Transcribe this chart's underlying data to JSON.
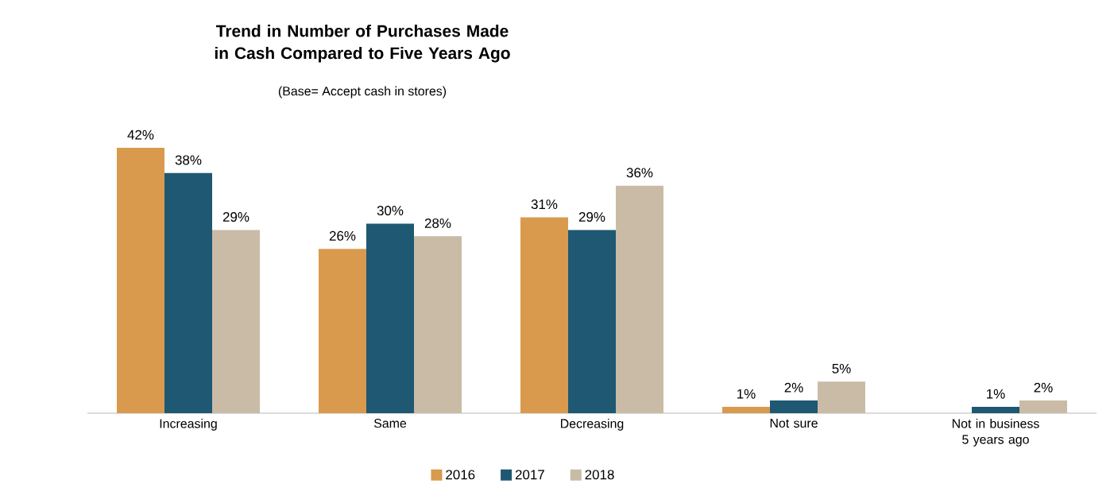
{
  "chart_data": {
    "type": "bar",
    "title": "Trend in Number of Purchases Made in Cash Compared to Five Years Ago",
    "subtitle": "(Base= Accept cash in stores)",
    "categories": [
      "Increasing",
      "Same",
      "Decreasing",
      "Not sure",
      "Not in business 5 years ago"
    ],
    "series": [
      {
        "name": "2016",
        "color": "#d99a4e",
        "values": [
          42,
          26,
          31,
          1,
          null
        ],
        "value_labels": [
          "42%",
          "26%",
          "31%",
          "1%",
          null
        ]
      },
      {
        "name": "2017",
        "color": "#1f5872",
        "values": [
          38,
          30,
          29,
          2,
          1
        ],
        "value_labels": [
          "38%",
          "30%",
          "29%",
          "2%",
          "1%"
        ]
      },
      {
        "name": "2018",
        "color": "#c9bba6",
        "values": [
          29,
          28,
          36,
          5,
          2
        ],
        "value_labels": [
          "29%",
          "28%",
          "36%",
          "5%",
          "2%"
        ]
      }
    ],
    "legend": "bottom"
  }
}
